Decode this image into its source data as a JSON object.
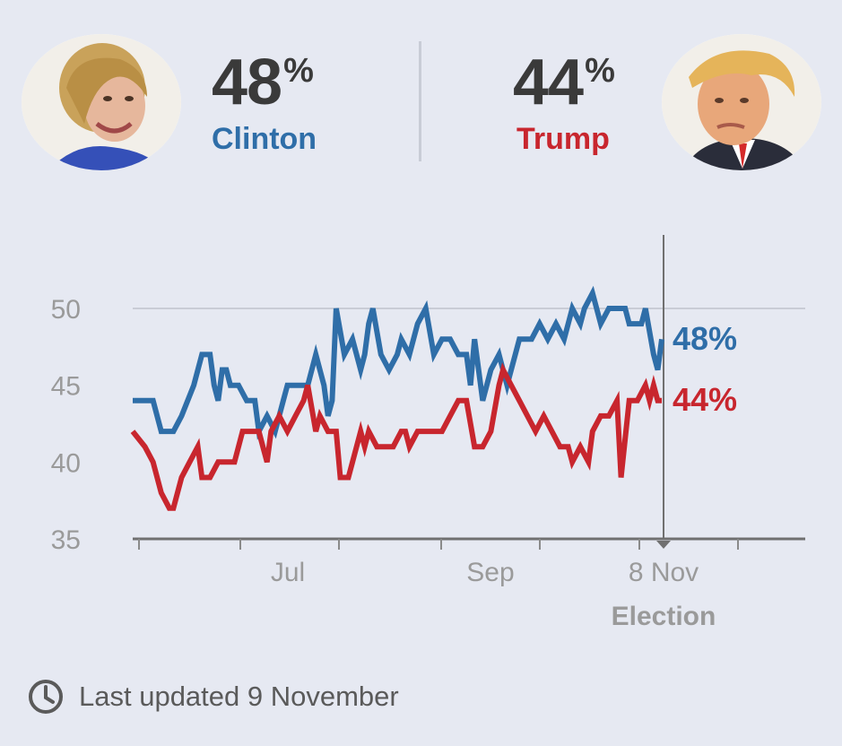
{
  "header": {
    "candidates": [
      {
        "name": "Clinton",
        "percent": "48",
        "symbol": "%",
        "color": "#2f6ea8"
      },
      {
        "name": "Trump",
        "percent": "44",
        "symbol": "%",
        "color": "#c8262e"
      }
    ]
  },
  "footer": {
    "text": "Last updated 9 November",
    "icon": "clock-icon"
  },
  "chart_data": {
    "type": "line",
    "ylim": [
      35,
      50
    ],
    "y_ticks": [
      50,
      45,
      40,
      35
    ],
    "x_tick_labels": [
      "Jul",
      "Sep",
      "8 Nov"
    ],
    "marker_label": "Election",
    "grid": "horizontal line at 50",
    "end_labels": [
      "48%",
      "44%"
    ],
    "series": [
      {
        "name": "Clinton",
        "color": "#2f6ea8",
        "points": [
          [
            0,
            44
          ],
          [
            5,
            44
          ],
          [
            7,
            42
          ],
          [
            10,
            42
          ],
          [
            12,
            43
          ],
          [
            15,
            45
          ],
          [
            17,
            47
          ],
          [
            19,
            47
          ],
          [
            20,
            45
          ],
          [
            21,
            44
          ],
          [
            22,
            46
          ],
          [
            23,
            46
          ],
          [
            24,
            45
          ],
          [
            26,
            45
          ],
          [
            28,
            44
          ],
          [
            30,
            44
          ],
          [
            31,
            42
          ],
          [
            33,
            43
          ],
          [
            35,
            42
          ],
          [
            37,
            44
          ],
          [
            38,
            45
          ],
          [
            40,
            45
          ],
          [
            42,
            45
          ],
          [
            43,
            45
          ],
          [
            44,
            46
          ],
          [
            45,
            47
          ],
          [
            47,
            45
          ],
          [
            48,
            43
          ],
          [
            49,
            44
          ],
          [
            50,
            50
          ],
          [
            52,
            47
          ],
          [
            54,
            48
          ],
          [
            56,
            46
          ],
          [
            57,
            47
          ],
          [
            58,
            49
          ],
          [
            59,
            50
          ],
          [
            61,
            47
          ],
          [
            63,
            46
          ],
          [
            65,
            47
          ],
          [
            66,
            48
          ],
          [
            68,
            47
          ],
          [
            70,
            49
          ],
          [
            72,
            50
          ],
          [
            74,
            47
          ],
          [
            76,
            48
          ],
          [
            78,
            48
          ],
          [
            80,
            47
          ],
          [
            82,
            47
          ],
          [
            83,
            45
          ],
          [
            84,
            48
          ],
          [
            86,
            44
          ],
          [
            88,
            46
          ],
          [
            90,
            47
          ],
          [
            92,
            45
          ],
          [
            95,
            48
          ],
          [
            97,
            48
          ],
          [
            98,
            48
          ],
          [
            100,
            49
          ],
          [
            102,
            48
          ],
          [
            104,
            49
          ],
          [
            106,
            48
          ],
          [
            108,
            50
          ],
          [
            110,
            49
          ],
          [
            111,
            50
          ],
          [
            113,
            51
          ],
          [
            115,
            49
          ],
          [
            117,
            50
          ],
          [
            119,
            50
          ],
          [
            121,
            50
          ],
          [
            122,
            49
          ],
          [
            125,
            49
          ],
          [
            126,
            50
          ],
          [
            128,
            47
          ],
          [
            129,
            46
          ],
          [
            130,
            48
          ]
        ]
      },
      {
        "name": "Trump",
        "color": "#c8262e",
        "points": [
          [
            0,
            42
          ],
          [
            3,
            41
          ],
          [
            5,
            40
          ],
          [
            7,
            38
          ],
          [
            9,
            37
          ],
          [
            10,
            37
          ],
          [
            12,
            39
          ],
          [
            14,
            40
          ],
          [
            16,
            41
          ],
          [
            17,
            39
          ],
          [
            19,
            39
          ],
          [
            21,
            40
          ],
          [
            23,
            40
          ],
          [
            25,
            40
          ],
          [
            27,
            42
          ],
          [
            29,
            42
          ],
          [
            31,
            42
          ],
          [
            32,
            41
          ],
          [
            33,
            40
          ],
          [
            34,
            42
          ],
          [
            36,
            43
          ],
          [
            38,
            42
          ],
          [
            40,
            43
          ],
          [
            42,
            44
          ],
          [
            43,
            45
          ],
          [
            45,
            42
          ],
          [
            46,
            43
          ],
          [
            48,
            42
          ],
          [
            49,
            42
          ],
          [
            50,
            42
          ],
          [
            51,
            39
          ],
          [
            53,
            39
          ],
          [
            54,
            40
          ],
          [
            56,
            42
          ],
          [
            57,
            41
          ],
          [
            58,
            42
          ],
          [
            60,
            41
          ],
          [
            62,
            41
          ],
          [
            64,
            41
          ],
          [
            66,
            42
          ],
          [
            67,
            42
          ],
          [
            68,
            41
          ],
          [
            70,
            42
          ],
          [
            72,
            42
          ],
          [
            74,
            42
          ],
          [
            76,
            42
          ],
          [
            78,
            43
          ],
          [
            80,
            44
          ],
          [
            82,
            44
          ],
          [
            84,
            41
          ],
          [
            86,
            41
          ],
          [
            88,
            42
          ],
          [
            90,
            45
          ],
          [
            91,
            46
          ],
          [
            93,
            45
          ],
          [
            95,
            44
          ],
          [
            97,
            43
          ],
          [
            99,
            42
          ],
          [
            101,
            43
          ],
          [
            103,
            42
          ],
          [
            105,
            41
          ],
          [
            107,
            41
          ],
          [
            108,
            40
          ],
          [
            110,
            41
          ],
          [
            112,
            40
          ],
          [
            113,
            42
          ],
          [
            115,
            43
          ],
          [
            117,
            43
          ],
          [
            119,
            44
          ],
          [
            120,
            39
          ],
          [
            122,
            44
          ],
          [
            124,
            44
          ],
          [
            126,
            45
          ],
          [
            127,
            44
          ],
          [
            128,
            45
          ],
          [
            129,
            44
          ],
          [
            130,
            44
          ]
        ]
      }
    ]
  }
}
